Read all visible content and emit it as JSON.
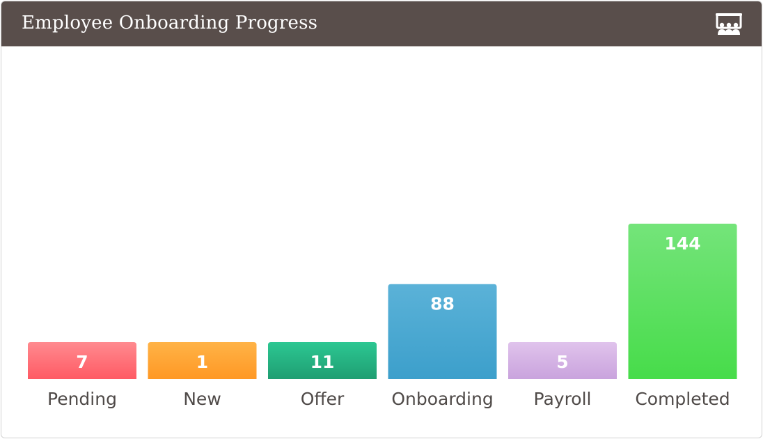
{
  "widget": {
    "title": "Employee Onboarding Progress",
    "icon": "presentation-team-icon"
  },
  "chart_data": {
    "type": "bar",
    "title": "Employee Onboarding Progress",
    "xlabel": "",
    "ylabel": "",
    "ylim": [
      0,
      144
    ],
    "grid": false,
    "legend": "none",
    "categories": [
      "Pending",
      "New",
      "Offer",
      "Onboarding",
      "Payroll",
      "Completed"
    ],
    "values": [
      7,
      1,
      11,
      88,
      5,
      144
    ],
    "colors": [
      {
        "top": "#ff8a8f",
        "bottom": "#ff5a64"
      },
      {
        "top": "#ffb347",
        "bottom": "#ff9824"
      },
      {
        "top": "#2cc792",
        "bottom": "#1f9e72"
      },
      {
        "top": "#5bb2d8",
        "bottom": "#3c9fcb"
      },
      {
        "top": "#e0c3ec",
        "bottom": "#c9a3dd"
      },
      {
        "top": "#74e47a",
        "bottom": "#47dc4a"
      }
    ]
  }
}
